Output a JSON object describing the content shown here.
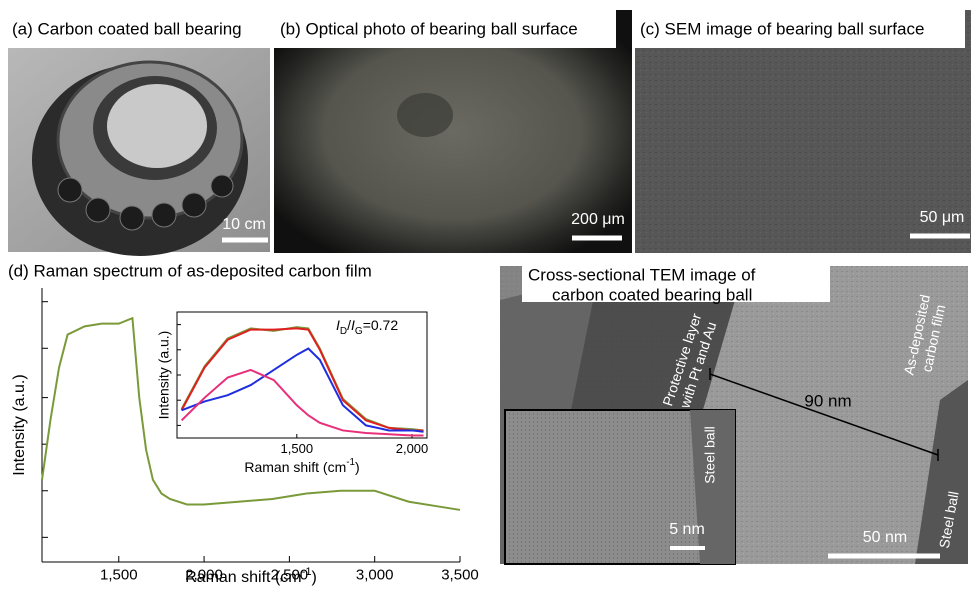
{
  "panels": {
    "a": {
      "title": "(a) Carbon coated ball bearing",
      "scale_bar": "10 cm"
    },
    "b": {
      "title": "(b) Optical photo of bearing ball surface",
      "scale_bar": "200 μm"
    },
    "c": {
      "title": "(c) SEM image of bearing ball surface",
      "scale_bar": "50 μm"
    },
    "e": {
      "title": [
        "Cross-sectional TEM image of",
        "carbon coated bearing ball"
      ],
      "protective_layer": [
        "Protective layer",
        "with Pt and Au"
      ],
      "film": [
        "As-deposited",
        "carbon film"
      ],
      "thickness": "90 nm",
      "steel_ball_inset": "Steel ball",
      "steel_ball": "Steel ball",
      "inset_scale_bar": "5 nm",
      "scale_bar": "50 nm"
    }
  },
  "chart_data": [
    {
      "type": "line",
      "title": "(d) Raman spectrum of as-deposited carbon film",
      "xlabel": [
        "Raman shift (cm",
        "-1",
        ")"
      ],
      "ylabel": "Intensity (a.u.)",
      "x": [
        1050,
        1100,
        1150,
        1200,
        1300,
        1400,
        1500,
        1580,
        1620,
        1660,
        1700,
        1750,
        1800,
        1900,
        2000,
        2200,
        2400,
        2600,
        2800,
        2900,
        3000,
        3200,
        3400,
        3500
      ],
      "series": [
        {
          "color": "#7a9a3a",
          "values": [
            30,
            52,
            71,
            83,
            86,
            87,
            87,
            89,
            60,
            41,
            30,
            25,
            23,
            21,
            21,
            22,
            23,
            25,
            26,
            26,
            26,
            22,
            20,
            19
          ]
        }
      ],
      "xlim": [
        1050,
        3500
      ],
      "xticks": [
        {
          "value": 1500,
          "label": "1,500"
        },
        {
          "value": 2000,
          "label": "2,000"
        },
        {
          "value": 2500,
          "label": "2,500"
        },
        {
          "value": 3000,
          "label": "3,000"
        },
        {
          "value": 3500,
          "label": "3,500"
        }
      ],
      "ylim": [
        0,
        100
      ],
      "yticks": [
        9,
        26,
        43,
        60,
        78,
        95
      ]
    },
    {
      "type": "line",
      "xlabel": [
        "Raman shift (cm",
        "-1",
        ")"
      ],
      "ylabel": "Intensity (a.u.)",
      "annotation": [
        "I",
        "D",
        "/",
        "I",
        "G",
        "=0.72"
      ],
      "x": [
        1000,
        1100,
        1200,
        1300,
        1400,
        1500,
        1550,
        1600,
        1700,
        1800,
        1900,
        2000,
        2050
      ],
      "series": [
        {
          "color": "#7a9a3a",
          "values": [
            23,
            57,
            79,
            87,
            85,
            88,
            87,
            71,
            31,
            15,
            8,
            7,
            6
          ]
        },
        {
          "color": "#e02020",
          "values": [
            22,
            56,
            78,
            86,
            86,
            87,
            86,
            70,
            30,
            14,
            8,
            6,
            6
          ]
        },
        {
          "color": "#1f2fe0",
          "values": [
            22,
            29,
            34,
            42,
            54,
            66,
            71,
            62,
            26,
            10,
            6,
            6,
            5
          ]
        },
        {
          "color": "#e8307a",
          "values": [
            14,
            32,
            48,
            54,
            46,
            26,
            18,
            12,
            6,
            4,
            3,
            2,
            2
          ]
        }
      ],
      "xlim": [
        980,
        2065
      ],
      "xticks": [
        {
          "value": 1500,
          "label": "1,500"
        },
        {
          "value": 2000,
          "label": "2,000"
        }
      ],
      "ylim": [
        0,
        100
      ],
      "yticks": [
        10,
        30,
        50,
        70,
        90
      ]
    }
  ]
}
